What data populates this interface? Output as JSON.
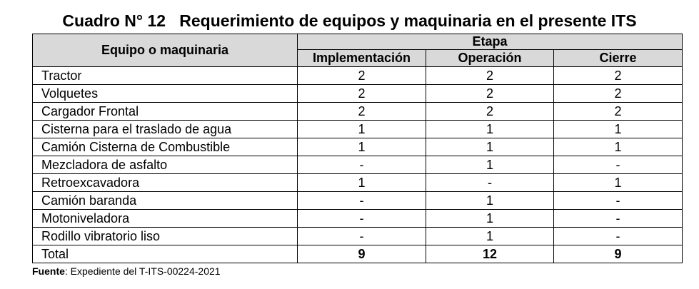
{
  "title": "Cuadro N° 12   Requerimiento de equipos y maquinaria en el presente ITS",
  "table": {
    "header_equipo": "Equipo o maquinaria",
    "header_etapa": "Etapa",
    "columns": [
      "Implementación",
      "Operación",
      "Cierre"
    ],
    "rows": [
      {
        "name": "Tractor",
        "values": [
          "2",
          "2",
          "2"
        ]
      },
      {
        "name": "Volquetes",
        "values": [
          "2",
          "2",
          "2"
        ]
      },
      {
        "name": "Cargador Frontal",
        "values": [
          "2",
          "2",
          "2"
        ]
      },
      {
        "name": "Cisterna para el traslado de agua",
        "values": [
          "1",
          "1",
          "1"
        ]
      },
      {
        "name": "Camión Cisterna de Combustible",
        "values": [
          "1",
          "1",
          "1"
        ]
      },
      {
        "name": "Mezcladora de asfalto",
        "values": [
          "-",
          "1",
          "-"
        ]
      },
      {
        "name": "Retroexcavadora",
        "values": [
          "1",
          "-",
          "1"
        ]
      },
      {
        "name": "Camión baranda",
        "values": [
          "-",
          "1",
          "-"
        ]
      },
      {
        "name": "Motoniveladora",
        "values": [
          "-",
          "1",
          "-"
        ]
      },
      {
        "name": "Rodillo vibratorio liso",
        "values": [
          "-",
          "1",
          "-"
        ]
      }
    ],
    "total": {
      "name": "Total",
      "values": [
        "9",
        "12",
        "9"
      ]
    }
  },
  "source": {
    "label": "Fuente",
    "text": ": Expediente del T-ITS-00224-2021"
  }
}
